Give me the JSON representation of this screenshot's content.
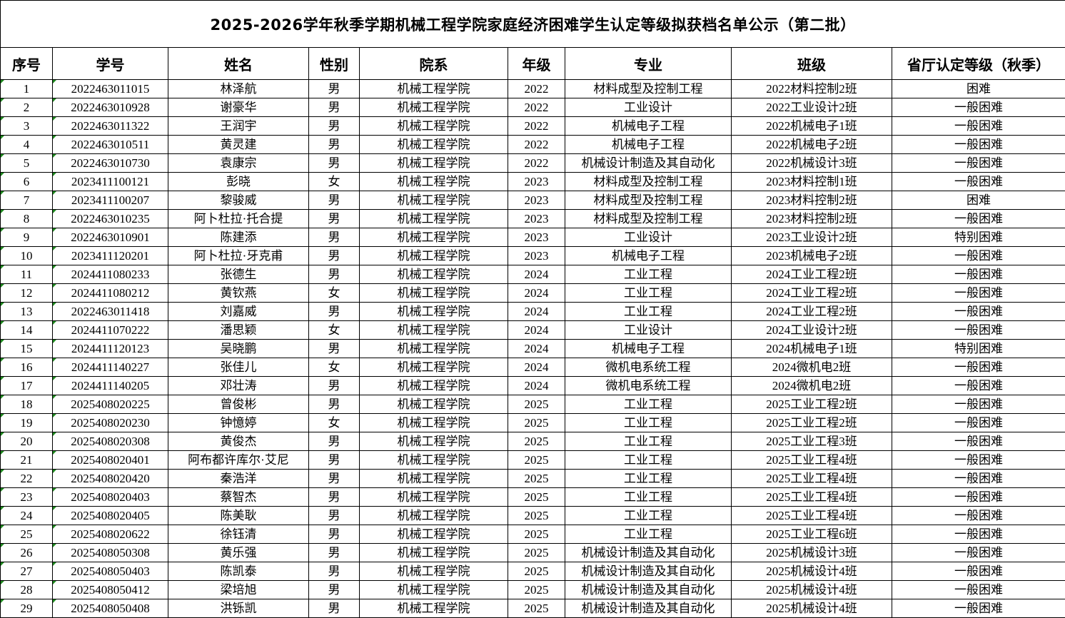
{
  "title": "2025-2026学年秋季学期机械工程学院家庭经济困难学生认定等级拟获档名单公示（第二批）",
  "headers": [
    "序号",
    "学号",
    "姓名",
    "性别",
    "院系",
    "年级",
    "专业",
    "班级",
    "省厅认定等级（秋季）"
  ],
  "rows": [
    [
      "1",
      "2022463011015",
      "林泽航",
      "男",
      "机械工程学院",
      "2022",
      "材料成型及控制工程",
      "2022材料控制2班",
      "困难"
    ],
    [
      "2",
      "2022463010928",
      "谢豪华",
      "男",
      "机械工程学院",
      "2022",
      "工业设计",
      "2022工业设计2班",
      "一般困难"
    ],
    [
      "3",
      "2022463011322",
      "王润宇",
      "男",
      "机械工程学院",
      "2022",
      "机械电子工程",
      "2022机械电子1班",
      "一般困难"
    ],
    [
      "4",
      "2022463010511",
      "黄灵建",
      "男",
      "机械工程学院",
      "2022",
      "机械电子工程",
      "2022机械电子2班",
      "一般困难"
    ],
    [
      "5",
      "2022463010730",
      "袁康宗",
      "男",
      "机械工程学院",
      "2022",
      "机械设计制造及其自动化",
      "2022机械设计3班",
      "一般困难"
    ],
    [
      "6",
      "2023411100121",
      "彭晓",
      "女",
      "机械工程学院",
      "2023",
      "材料成型及控制工程",
      "2023材料控制1班",
      "一般困难"
    ],
    [
      "7",
      "2023411100207",
      "黎骏威",
      "男",
      "机械工程学院",
      "2023",
      "材料成型及控制工程",
      "2023材料控制2班",
      "困难"
    ],
    [
      "8",
      "2022463010235",
      "阿卜杜拉·托合提",
      "男",
      "机械工程学院",
      "2023",
      "材料成型及控制工程",
      "2023材料控制2班",
      "一般困难"
    ],
    [
      "9",
      "2022463010901",
      "陈建添",
      "男",
      "机械工程学院",
      "2023",
      "工业设计",
      "2023工业设计2班",
      "特别困难"
    ],
    [
      "10",
      "2023411120201",
      "阿卜杜拉·牙克甫",
      "男",
      "机械工程学院",
      "2023",
      "机械电子工程",
      "2023机械电子2班",
      "一般困难"
    ],
    [
      "11",
      "2024411080233",
      "张德生",
      "男",
      "机械工程学院",
      "2024",
      "工业工程",
      "2024工业工程2班",
      "一般困难"
    ],
    [
      "12",
      "2024411080212",
      "黄钦燕",
      "女",
      "机械工程学院",
      "2024",
      "工业工程",
      "2024工业工程2班",
      "一般困难"
    ],
    [
      "13",
      "2022463011418",
      "刘嘉威",
      "男",
      "机械工程学院",
      "2024",
      "工业工程",
      "2024工业工程2班",
      "一般困难"
    ],
    [
      "14",
      "2024411070222",
      "潘思颖",
      "女",
      "机械工程学院",
      "2024",
      "工业设计",
      "2024工业设计2班",
      "一般困难"
    ],
    [
      "15",
      "2024411120123",
      "吴晓鹏",
      "男",
      "机械工程学院",
      "2024",
      "机械电子工程",
      "2024机械电子1班",
      "特别困难"
    ],
    [
      "16",
      "2024411140227",
      "张佳儿",
      "女",
      "机械工程学院",
      "2024",
      "微机电系统工程",
      "2024微机电2班",
      "一般困难"
    ],
    [
      "17",
      "2024411140205",
      "邓壮涛",
      "男",
      "机械工程学院",
      "2024",
      "微机电系统工程",
      "2024微机电2班",
      "一般困难"
    ],
    [
      "18",
      "2025408020225",
      "曾俊彬",
      "男",
      "机械工程学院",
      "2025",
      "工业工程",
      "2025工业工程2班",
      "一般困难"
    ],
    [
      "19",
      "2025408020230",
      "钟憶婷",
      "女",
      "机械工程学院",
      "2025",
      "工业工程",
      "2025工业工程2班",
      "一般困难"
    ],
    [
      "20",
      "2025408020308",
      "黄俊杰",
      "男",
      "机械工程学院",
      "2025",
      "工业工程",
      "2025工业工程3班",
      "一般困难"
    ],
    [
      "21",
      "2025408020401",
      "阿布都许库尔·艾尼",
      "男",
      "机械工程学院",
      "2025",
      "工业工程",
      "2025工业工程4班",
      "一般困难"
    ],
    [
      "22",
      "2025408020420",
      "秦浩洋",
      "男",
      "机械工程学院",
      "2025",
      "工业工程",
      "2025工业工程4班",
      "一般困难"
    ],
    [
      "23",
      "2025408020403",
      "蔡智杰",
      "男",
      "机械工程学院",
      "2025",
      "工业工程",
      "2025工业工程4班",
      "一般困难"
    ],
    [
      "24",
      "2025408020405",
      "陈美耿",
      "男",
      "机械工程学院",
      "2025",
      "工业工程",
      "2025工业工程4班",
      "一般困难"
    ],
    [
      "25",
      "2025408020622",
      "徐钰清",
      "男",
      "机械工程学院",
      "2025",
      "工业工程",
      "2025工业工程6班",
      "一般困难"
    ],
    [
      "26",
      "2025408050308",
      "黄乐强",
      "男",
      "机械工程学院",
      "2025",
      "机械设计制造及其自动化",
      "2025机械设计3班",
      "一般困难"
    ],
    [
      "27",
      "2025408050403",
      "陈凯泰",
      "男",
      "机械工程学院",
      "2025",
      "机械设计制造及其自动化",
      "2025机械设计4班",
      "一般困难"
    ],
    [
      "28",
      "2025408050412",
      "梁培旭",
      "男",
      "机械工程学院",
      "2025",
      "机械设计制造及其自动化",
      "2025机械设计4班",
      "一般困难"
    ],
    [
      "29",
      "2025408050408",
      "洪铄凯",
      "男",
      "机械工程学院",
      "2025",
      "机械设计制造及其自动化",
      "2025机械设计4班",
      "一般困难"
    ]
  ]
}
